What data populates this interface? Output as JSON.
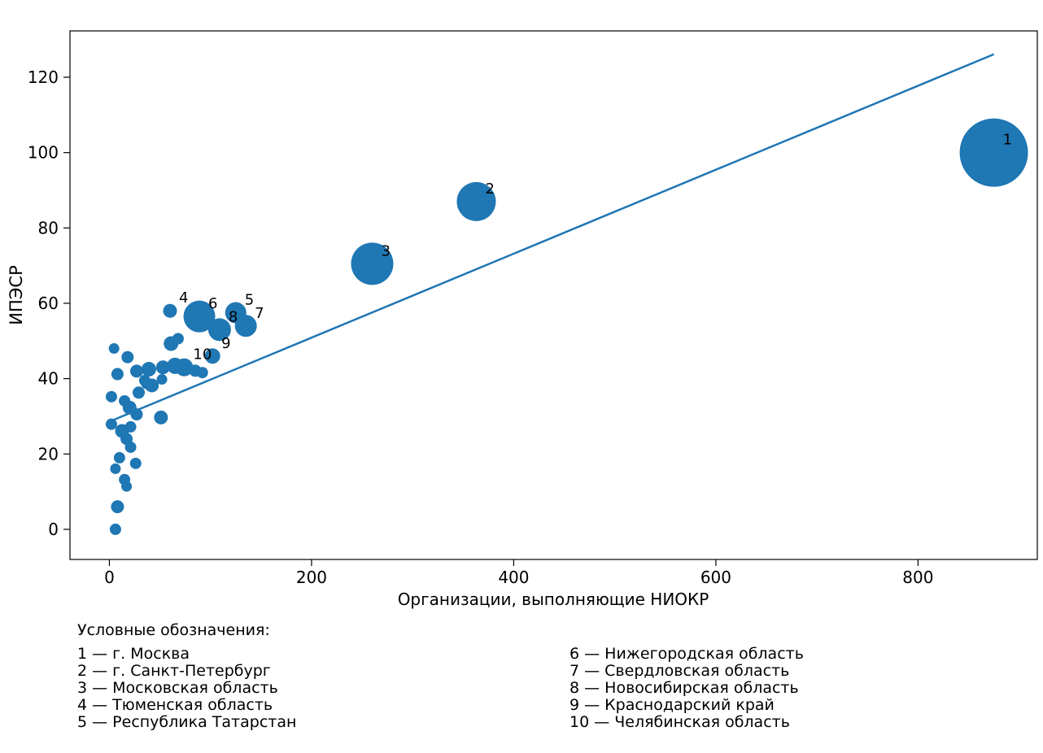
{
  "chart_data": {
    "type": "scatter",
    "title": "",
    "xlabel": "Организации, выполняющие НИОКР",
    "ylabel": "ИПЭСР",
    "xlim": [
      -39,
      918
    ],
    "ylim": [
      -8,
      132.3
    ],
    "xticks": [
      0,
      200,
      400,
      600,
      800
    ],
    "yticks": [
      0,
      20,
      40,
      60,
      80,
      100,
      120
    ],
    "grid": false,
    "legend_position": "below",
    "point_color": "#1f77b4",
    "axis_color": "#000000",
    "labeled_points": [
      {
        "label": "1",
        "x": 875,
        "y": 100,
        "r": 42
      },
      {
        "label": "2",
        "x": 363,
        "y": 87,
        "r": 24
      },
      {
        "label": "3",
        "x": 260,
        "y": 70.5,
        "r": 26
      },
      {
        "label": "4",
        "x": 60,
        "y": 58,
        "r": 8.5
      },
      {
        "label": "5",
        "x": 125,
        "y": 57.5,
        "r": 13
      },
      {
        "label": "6",
        "x": 89,
        "y": 56.5,
        "r": 19.5
      },
      {
        "label": "7",
        "x": 135,
        "y": 54,
        "r": 13.5
      },
      {
        "label": "8",
        "x": 109,
        "y": 53,
        "r": 14
      },
      {
        "label": "9",
        "x": 102,
        "y": 46,
        "r": 9.5
      },
      {
        "label": "10",
        "x": 74,
        "y": 43,
        "r": 11
      }
    ],
    "background_points": [
      [
        4.6,
        48,
        6.5
      ],
      [
        18,
        45.7,
        7.5
      ],
      [
        8,
        41.2,
        7.5
      ],
      [
        27,
        42,
        8
      ],
      [
        39,
        42.5,
        9
      ],
      [
        61,
        49.3,
        9
      ],
      [
        68,
        50.6,
        7
      ],
      [
        53,
        43,
        8.5
      ],
      [
        65,
        43.4,
        10
      ],
      [
        85,
        42.1,
        7.5
      ],
      [
        92,
        41.6,
        7
      ],
      [
        35,
        39.5,
        7
      ],
      [
        37,
        38.7,
        7
      ],
      [
        42,
        38.2,
        8.5
      ],
      [
        52,
        39.8,
        6.5
      ],
      [
        29,
        36.3,
        7.5
      ],
      [
        2,
        35.2,
        7
      ],
      [
        15,
        34.1,
        7
      ],
      [
        20,
        32.3,
        8.5
      ],
      [
        27,
        30.5,
        7.5
      ],
      [
        51,
        29.7,
        8.5
      ],
      [
        2,
        27.9,
        7
      ],
      [
        12.5,
        26.1,
        8.5
      ],
      [
        21,
        27.2,
        7
      ],
      [
        17,
        24,
        7.5
      ],
      [
        21,
        21.8,
        7
      ],
      [
        10,
        19,
        7
      ],
      [
        26,
        17.5,
        7
      ],
      [
        6,
        16.1,
        6.5
      ],
      [
        15,
        13.2,
        7
      ],
      [
        17,
        11.4,
        6.5
      ],
      [
        8,
        6,
        8
      ],
      [
        6,
        0,
        7
      ]
    ],
    "trend_line": {
      "x1": 1,
      "y1": 28.7,
      "x2": 875,
      "y2": 126.1,
      "color": "#1f77b4",
      "width": 2.5
    }
  },
  "legend": {
    "title": "Условные обозначения:",
    "columns": [
      [
        "1 — г. Москва",
        "2 — г. Санкт-Петербург",
        "3 — Московская область",
        "4 — Тюменская область",
        "5 — Республика Татарстан"
      ],
      [
        "6 — Нижегородская область",
        "7 — Свердловская область",
        "8 — Новосибирская область",
        "9 — Краснодарский край",
        "10 — Челябинская область"
      ]
    ]
  }
}
